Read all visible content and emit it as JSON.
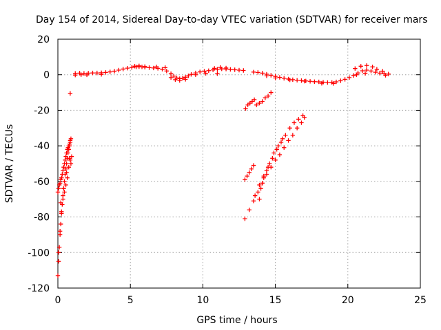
{
  "chart_data": {
    "type": "scatter",
    "title": "Day 154 of 2014, Sidereal Day-to-day VTEC variation (SDTVAR) for receiver mars",
    "xlabel": "GPS time / hours",
    "ylabel": "SDTVAR / TECUs",
    "xlim": [
      0,
      25
    ],
    "ylim": [
      -120,
      20
    ],
    "x_ticks": [
      0,
      5,
      10,
      15,
      20,
      25
    ],
    "x_tick_labels": [
      "0",
      "5",
      "10",
      "15",
      "20",
      "25"
    ],
    "y_ticks": [
      20,
      0,
      -20,
      -40,
      -60,
      -80,
      -100,
      -120
    ],
    "y_tick_labels": [
      "20",
      "0",
      "-20",
      "-40",
      "-60",
      "-80",
      "-100",
      "-120"
    ],
    "grid": true,
    "marker": "+",
    "color": "#ff0000",
    "series": [
      {
        "name": "main-band-early",
        "x": [
          1.2,
          1.5,
          1.8,
          2.1,
          2.4,
          2.7,
          3.0,
          3.3,
          3.6,
          3.9,
          4.2,
          4.5,
          4.8,
          5.1,
          5.4,
          5.6,
          5.8,
          6.0,
          6.3,
          6.6,
          6.9,
          7.2,
          7.5,
          7.8,
          8.0,
          8.2,
          8.4,
          8.6,
          8.8,
          9.0,
          9.2,
          9.5,
          9.8,
          10.1,
          10.4,
          10.7,
          11.0,
          11.3,
          11.6,
          11.9,
          12.2,
          12.5,
          12.8
        ],
        "y": [
          0.8,
          0.9,
          0.8,
          0.9,
          1.0,
          1.0,
          1.1,
          1.3,
          1.6,
          2.0,
          2.6,
          3.2,
          3.7,
          4.1,
          4.4,
          4.5,
          4.4,
          4.2,
          4.0,
          3.8,
          3.6,
          3.1,
          2.1,
          0.6,
          -0.8,
          -1.8,
          -2.2,
          -2.0,
          -1.4,
          -0.6,
          0.2,
          1.0,
          1.6,
          2.0,
          2.3,
          2.7,
          3.1,
          3.3,
          3.2,
          3.0,
          2.8,
          2.6,
          2.4
        ]
      },
      {
        "name": "main-band-late",
        "x": [
          13.5,
          13.8,
          14.1,
          14.4,
          14.7,
          15.0,
          15.3,
          15.6,
          15.9,
          16.2,
          16.5,
          16.8,
          17.1,
          17.4,
          17.7,
          18.0,
          18.3,
          18.6,
          18.9,
          19.2,
          19.5,
          19.8,
          20.1,
          20.4,
          20.7,
          21.0,
          21.3,
          21.6,
          21.9,
          22.2,
          22.5,
          22.8
        ],
        "y": [
          1.5,
          1.3,
          0.9,
          0.3,
          -0.3,
          -0.9,
          -1.5,
          -2.0,
          -2.4,
          -2.8,
          -3.1,
          -3.3,
          -3.5,
          -3.7,
          -3.9,
          -4.0,
          -4.2,
          -4.4,
          -4.3,
          -4.0,
          -3.4,
          -2.6,
          -1.6,
          -0.4,
          1.0,
          2.2,
          2.6,
          2.1,
          1.4,
          0.9,
          0.6,
          0.4
        ]
      },
      {
        "name": "main-band-upper-bumps",
        "x": [
          5.3,
          5.6,
          6.0,
          6.8,
          7.4,
          10.8,
          11.2,
          11.6,
          20.5,
          20.9,
          21.3,
          21.7,
          22.0,
          22.4
        ],
        "y": [
          4.8,
          5.0,
          4.6,
          4.4,
          4.0,
          3.6,
          4.1,
          3.8,
          3.5,
          4.8,
          5.2,
          4.4,
          3.1,
          2.0
        ]
      },
      {
        "name": "main-band-lower-bumps",
        "x": [
          1.2,
          1.6,
          2.0,
          3.0,
          7.8,
          8.1,
          8.4,
          8.8,
          9.5,
          10.2,
          11.0,
          14.4,
          15.0,
          16.0,
          17.0,
          18.2,
          19.0,
          20.6,
          21.2,
          22.6
        ],
        "y": [
          -0.2,
          0.0,
          -0.1,
          0.2,
          -1.6,
          -2.8,
          -3.2,
          -2.6,
          0.0,
          0.8,
          0.6,
          -0.6,
          -1.8,
          -2.9,
          -3.6,
          -4.8,
          -4.9,
          0.0,
          0.8,
          -0.3
        ]
      },
      {
        "name": "early-arc",
        "x": [
          0.0,
          0.05,
          0.1,
          0.15,
          0.2,
          0.25,
          0.3,
          0.35,
          0.4,
          0.45,
          0.5,
          0.55,
          0.6,
          0.65,
          0.7,
          0.75,
          0.8,
          0.85,
          0.9
        ],
        "y": [
          -113,
          -105,
          -97,
          -90,
          -84,
          -78,
          -73,
          -68,
          -64,
          -60,
          -56,
          -53,
          -50,
          -47,
          -44,
          -42,
          -40,
          -38,
          -36
        ]
      },
      {
        "name": "early-arc-upper",
        "x": [
          0.0,
          0.05,
          0.1,
          0.15,
          0.2,
          0.25,
          0.3,
          0.35,
          0.4,
          0.45,
          0.5,
          0.55,
          0.6,
          0.65,
          0.7,
          0.75,
          0.8,
          0.85
        ],
        "y": [
          -66,
          -64,
          -62,
          -61,
          -59,
          -58,
          -56,
          -54,
          -52,
          -50,
          -48,
          -46,
          -44,
          -42,
          -41,
          -40,
          -39,
          -37
        ]
      },
      {
        "name": "early-arc-scatter",
        "x": [
          0.05,
          0.15,
          0.25,
          0.35,
          0.45,
          0.55,
          0.65,
          0.75,
          0.85,
          0.9,
          0.95,
          0.2,
          0.4,
          0.6,
          0.8
        ],
        "y": [
          -100,
          -88,
          -77,
          -70,
          -66,
          -62,
          -58,
          -52,
          -48,
          -50,
          -46,
          -72,
          -64,
          -55,
          -47
        ]
      },
      {
        "name": "outlier",
        "x": [
          0.85
        ],
        "y": [
          -10.5
        ]
      },
      {
        "name": "late-arc-lower",
        "x": [
          12.9,
          13.2,
          13.5,
          13.8,
          14.1,
          14.4,
          14.7,
          15.0,
          15.3,
          15.6,
          15.9,
          16.2,
          16.5,
          16.8,
          17.0
        ],
        "y": [
          -81,
          -76,
          -71,
          -66,
          -61,
          -56,
          -52,
          -48,
          -45,
          -41,
          -37,
          -34,
          -30,
          -27,
          -24
        ]
      },
      {
        "name": "late-arc-upper",
        "x": [
          13.6,
          13.9,
          14.2,
          14.5,
          14.8,
          15.1,
          15.4,
          15.7,
          16.0,
          16.3,
          16.6,
          16.9
        ],
        "y": [
          -68,
          -62,
          -57,
          -52,
          -47,
          -42,
          -38,
          -34,
          -30,
          -27,
          -25,
          -23
        ]
      },
      {
        "name": "late-arc-short-lower",
        "x": [
          12.9,
          13.05,
          13.2,
          13.35,
          13.5
        ],
        "y": [
          -59,
          -57,
          -55,
          -53,
          -51
        ]
      },
      {
        "name": "late-arc-short-upper",
        "x": [
          12.95,
          13.1,
          13.25,
          13.4,
          13.55,
          13.7,
          13.9,
          14.1,
          14.3,
          14.5,
          14.7
        ],
        "y": [
          -19,
          -17,
          -16,
          -15,
          -14,
          -17,
          -16,
          -15,
          -13,
          -12,
          -10
        ]
      },
      {
        "name": "late-arc-fan",
        "x": [
          13.9,
          14.0,
          14.1,
          14.2,
          14.4,
          14.6,
          14.9,
          15.2,
          15.5
        ],
        "y": [
          -70,
          -64,
          -61,
          -58,
          -54,
          -50,
          -44,
          -40,
          -36
        ]
      }
    ]
  }
}
